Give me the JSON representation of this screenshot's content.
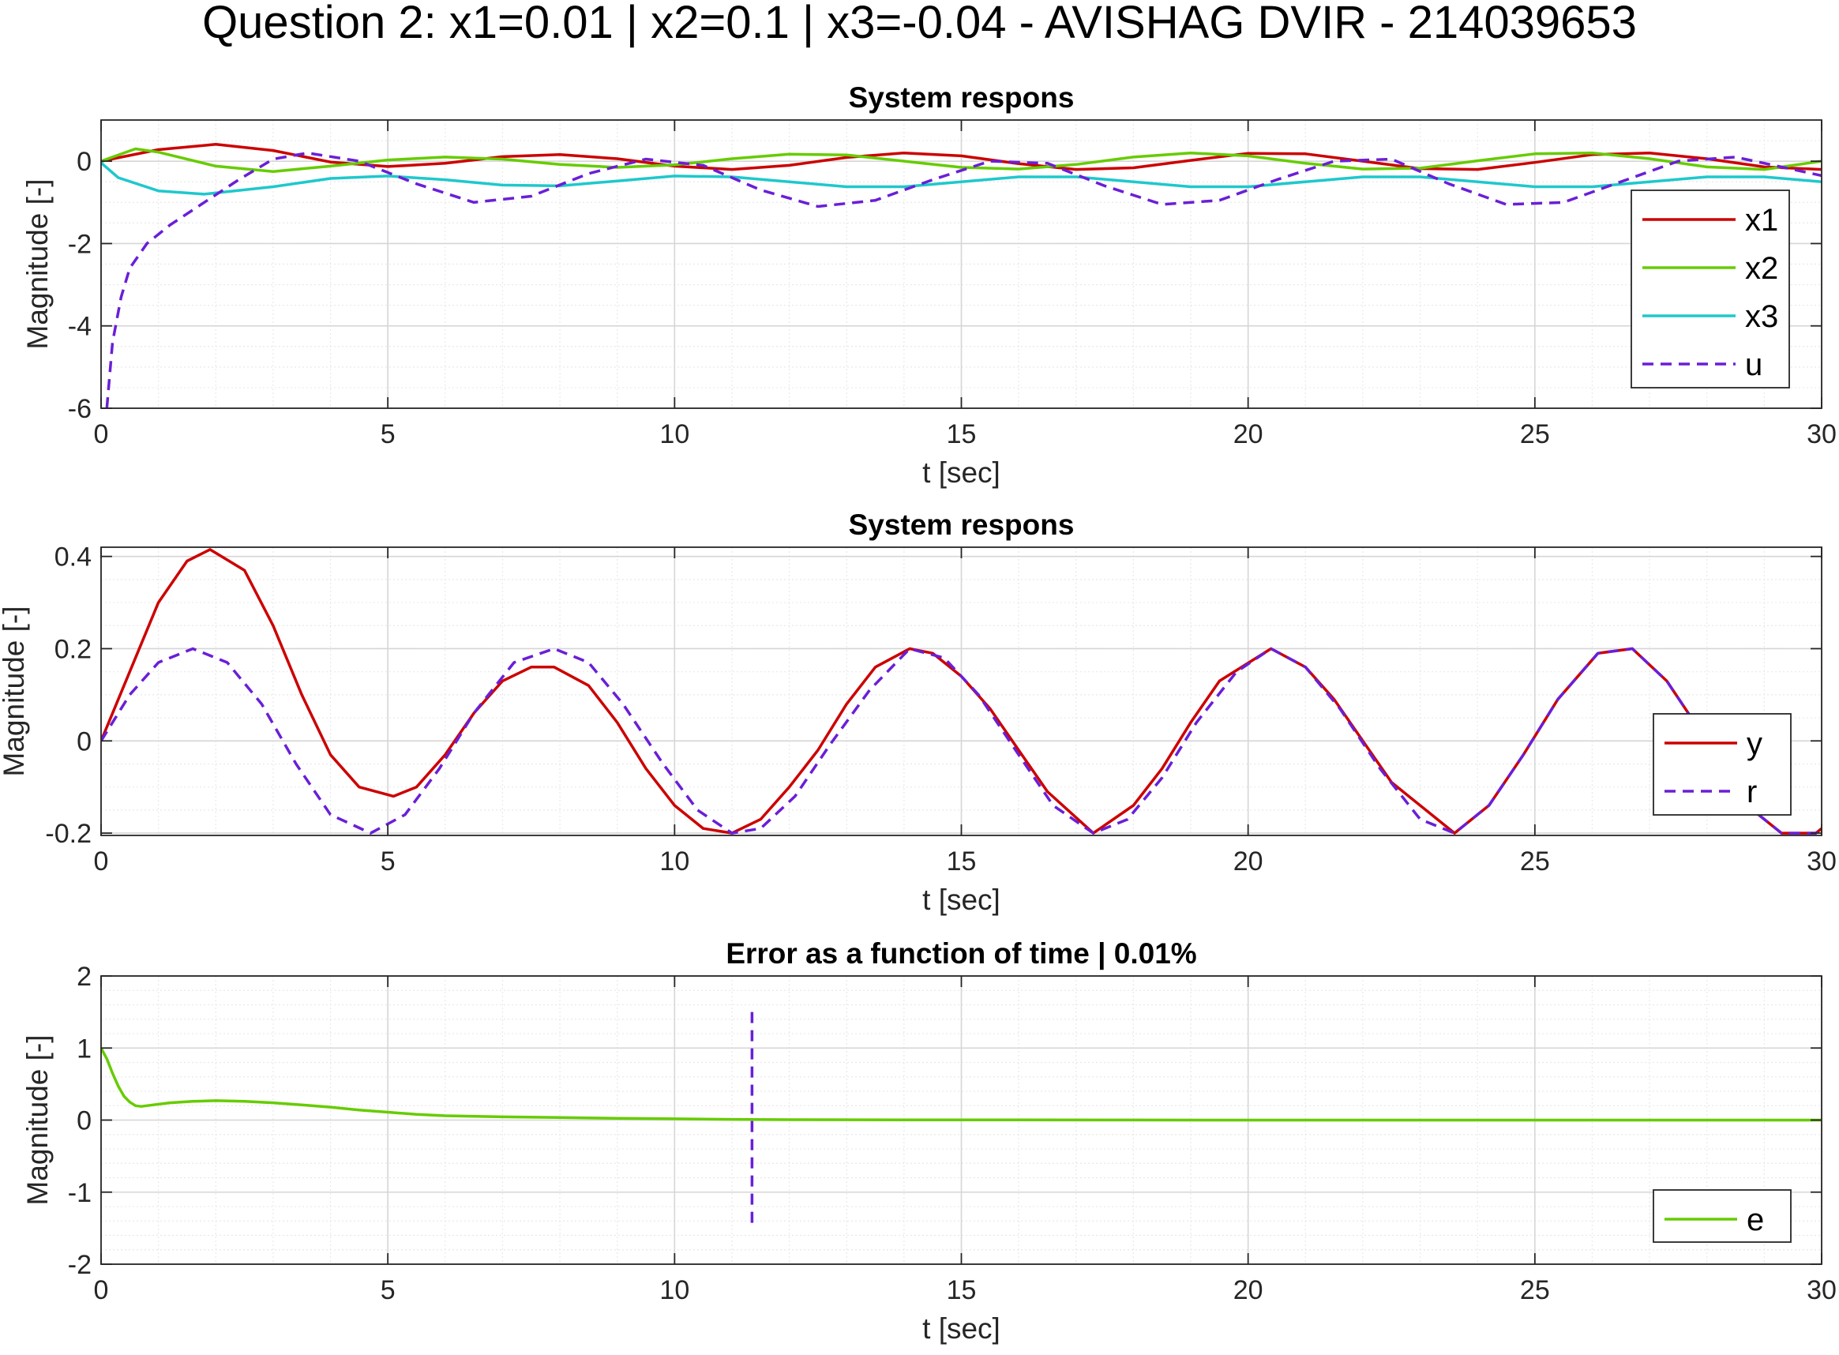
{
  "figure": {
    "title": "Question 2: x1=0.01 | x2=0.1 | x3=-0.04 - AVISHAG DVIR - 214039653"
  },
  "colors": {
    "x1": "#cc0000",
    "x2": "#66cc00",
    "x3": "#1ec8cc",
    "u": "#6a1fd6",
    "y": "#cc0000",
    "r": "#6a1fd6",
    "e": "#66cc00",
    "marker": "#6a1fd6",
    "grid": "#d6d6d6",
    "minor_grid": "#e9e9e9",
    "axis": "#262626"
  },
  "chart_data": [
    {
      "type": "line",
      "title": "System respons",
      "xlabel": "t [sec]",
      "ylabel": "Magnitude [-]",
      "xlim": [
        0,
        30
      ],
      "ylim": [
        -6,
        1
      ],
      "xticks": [
        "0",
        "5",
        "10",
        "15",
        "20",
        "25",
        "30"
      ],
      "yticks": [
        "-6",
        "-4",
        "-2",
        "0"
      ],
      "ytick_values": [
        -6,
        -4,
        -2,
        0
      ],
      "grid": true,
      "minor_grid": true,
      "legend_position": "right",
      "series": [
        {
          "name": "x1",
          "style": "solid",
          "x": [
            0,
            1,
            2,
            3,
            4,
            5,
            6,
            7,
            8,
            9,
            10,
            11,
            12,
            13,
            14,
            15,
            16,
            17,
            18,
            19,
            20,
            21,
            22,
            23,
            24,
            25,
            26,
            27,
            28,
            29,
            30
          ],
          "y": [
            0.0,
            0.28,
            0.41,
            0.26,
            -0.02,
            -0.13,
            -0.05,
            0.11,
            0.16,
            0.06,
            -0.12,
            -0.2,
            -0.1,
            0.09,
            0.2,
            0.13,
            -0.06,
            -0.2,
            -0.16,
            0.02,
            0.19,
            0.18,
            0.0,
            -0.18,
            -0.2,
            -0.03,
            0.16,
            0.2,
            0.06,
            -0.14,
            -0.2
          ]
        },
        {
          "name": "x2",
          "style": "solid",
          "x": [
            0,
            0.6,
            1,
            2,
            3,
            4,
            5,
            6,
            7,
            8,
            9,
            10,
            11,
            12,
            13,
            14,
            15,
            16,
            17,
            18,
            19,
            20,
            21,
            22,
            23,
            24,
            25,
            26,
            27,
            28,
            29,
            30
          ],
          "y": [
            0.0,
            0.3,
            0.22,
            -0.12,
            -0.25,
            -0.12,
            0.03,
            0.1,
            0.05,
            -0.08,
            -0.15,
            -0.09,
            0.06,
            0.17,
            0.15,
            0.0,
            -0.15,
            -0.19,
            -0.08,
            0.1,
            0.2,
            0.13,
            -0.05,
            -0.19,
            -0.17,
            0.01,
            0.18,
            0.2,
            0.06,
            -0.14,
            -0.2,
            0.0
          ]
        },
        {
          "name": "x3",
          "style": "solid",
          "x": [
            0,
            0.3,
            1,
            1.8,
            3,
            4,
            5,
            6,
            7,
            8,
            9,
            10,
            11,
            12,
            13,
            14,
            15,
            16,
            17,
            18,
            19,
            20,
            21,
            22,
            23,
            24,
            25,
            26,
            27,
            28,
            29,
            30
          ],
          "y": [
            -0.04,
            -0.4,
            -0.72,
            -0.8,
            -0.62,
            -0.42,
            -0.36,
            -0.45,
            -0.58,
            -0.6,
            -0.48,
            -0.36,
            -0.38,
            -0.5,
            -0.62,
            -0.62,
            -0.5,
            -0.38,
            -0.38,
            -0.5,
            -0.62,
            -0.62,
            -0.5,
            -0.38,
            -0.38,
            -0.5,
            -0.62,
            -0.62,
            -0.5,
            -0.38,
            -0.38,
            -0.5
          ]
        },
        {
          "name": "u",
          "style": "dashed",
          "x": [
            0.1,
            0.2,
            0.35,
            0.5,
            0.8,
            1.2,
            1.8,
            2.4,
            3,
            3.6,
            4.5,
            5.5,
            6.5,
            7.5,
            8.5,
            9.5,
            10.5,
            11.5,
            12.5,
            13.5,
            14.5,
            15.5,
            16.5,
            17.5,
            18.5,
            19.5,
            20.5,
            21.5,
            22.5,
            23.5,
            24.5,
            25.5,
            26.5,
            27.5,
            28.5,
            29.5,
            30
          ],
          "y": [
            -6.0,
            -4.4,
            -3.3,
            -2.6,
            -2.0,
            -1.55,
            -1.0,
            -0.45,
            0.05,
            0.2,
            0.0,
            -0.55,
            -1.0,
            -0.85,
            -0.3,
            0.05,
            -0.1,
            -0.7,
            -1.1,
            -0.95,
            -0.45,
            0.0,
            -0.05,
            -0.6,
            -1.05,
            -0.95,
            -0.45,
            0.0,
            0.05,
            -0.55,
            -1.05,
            -1.0,
            -0.5,
            0.0,
            0.1,
            -0.2,
            -0.35
          ]
        }
      ]
    },
    {
      "type": "line",
      "title": "System respons",
      "xlabel": "t [sec]",
      "ylabel": "Magnitude [-]",
      "xlim": [
        0,
        30
      ],
      "ylim": [
        -0.205,
        0.42
      ],
      "xticks": [
        "0",
        "5",
        "10",
        "15",
        "20",
        "25",
        "30"
      ],
      "yticks": [
        "-0.2",
        "0",
        "0.2",
        "0.4"
      ],
      "ytick_values": [
        -0.2,
        0,
        0.2,
        0.4
      ],
      "grid": true,
      "minor_grid": true,
      "legend_position": "bottom-right",
      "series": [
        {
          "name": "y",
          "style": "solid",
          "x": [
            0,
            0.5,
            1,
            1.5,
            1.9,
            2.5,
            3,
            3.5,
            4,
            4.5,
            5.1,
            5.5,
            6,
            6.5,
            7,
            7.5,
            7.9,
            8.5,
            9,
            9.5,
            10,
            10.5,
            11,
            11.5,
            12,
            12.5,
            13,
            13.5,
            14.1,
            14.5,
            15,
            15.5,
            16,
            16.5,
            17.3,
            18,
            18.5,
            19,
            19.5,
            20.4,
            21,
            21.5,
            22,
            22.5,
            23.6,
            24.2,
            24.8,
            25.4,
            26.1,
            26.7,
            27.3,
            28,
            28.6,
            29.3,
            29.9,
            30
          ],
          "y": [
            0.0,
            0.15,
            0.3,
            0.39,
            0.415,
            0.37,
            0.25,
            0.1,
            -0.03,
            -0.1,
            -0.12,
            -0.1,
            -0.03,
            0.06,
            0.13,
            0.16,
            0.16,
            0.12,
            0.04,
            -0.06,
            -0.14,
            -0.19,
            -0.2,
            -0.17,
            -0.1,
            -0.02,
            0.08,
            0.16,
            0.2,
            0.19,
            0.14,
            0.07,
            -0.02,
            -0.11,
            -0.2,
            -0.14,
            -0.06,
            0.04,
            0.13,
            0.2,
            0.16,
            0.09,
            0.0,
            -0.09,
            -0.2,
            -0.14,
            -0.03,
            0.09,
            0.19,
            0.2,
            0.13,
            0.0,
            -0.13,
            -0.2,
            -0.2,
            -0.19
          ]
        },
        {
          "name": "r",
          "style": "dashed",
          "x": [
            0,
            0.5,
            1,
            1.6,
            2.2,
            2.8,
            3.4,
            4,
            4.7,
            5.3,
            5.9,
            6.5,
            7.2,
            7.9,
            8.5,
            9.1,
            9.8,
            10.4,
            11,
            11.5,
            12.1,
            12.7,
            13.4,
            14.1,
            14.7,
            15.3,
            16,
            16.6,
            17.3,
            17.9,
            18.5,
            19.1,
            19.8,
            20.4,
            21,
            21.6,
            22.3,
            23,
            23.6,
            24.2,
            24.8,
            25.4,
            26.1,
            26.7,
            27.3,
            28,
            28.6,
            29.3,
            29.9,
            30
          ],
          "y": [
            0.0,
            0.1,
            0.17,
            0.2,
            0.17,
            0.08,
            -0.05,
            -0.16,
            -0.2,
            -0.16,
            -0.06,
            0.06,
            0.17,
            0.2,
            0.17,
            0.08,
            -0.05,
            -0.15,
            -0.2,
            -0.19,
            -0.12,
            -0.01,
            0.11,
            0.2,
            0.18,
            0.1,
            -0.03,
            -0.14,
            -0.2,
            -0.17,
            -0.08,
            0.04,
            0.15,
            0.2,
            0.16,
            0.07,
            -0.06,
            -0.17,
            -0.2,
            -0.14,
            -0.03,
            0.09,
            0.19,
            0.2,
            0.13,
            0.0,
            -0.13,
            -0.2,
            -0.2,
            -0.19
          ]
        }
      ]
    },
    {
      "type": "line",
      "title": "Error as a function of time | 0.01%",
      "xlabel": "t [sec]",
      "ylabel": "Magnitude [-]",
      "xlim": [
        0,
        30
      ],
      "ylim": [
        -2,
        2
      ],
      "xticks": [
        "0",
        "5",
        "10",
        "15",
        "20",
        "25",
        "30"
      ],
      "yticks": [
        "-2",
        "-1",
        "0",
        "1",
        "2"
      ],
      "ytick_values": [
        -2,
        -1,
        0,
        1,
        2
      ],
      "grid": true,
      "minor_grid": true,
      "legend_position": "bottom-right",
      "series": [
        {
          "name": "e",
          "style": "solid",
          "x": [
            0,
            0.1,
            0.2,
            0.3,
            0.4,
            0.5,
            0.6,
            0.7,
            0.9,
            1.2,
            1.6,
            2,
            2.5,
            3,
            3.5,
            4,
            4.5,
            5,
            5.5,
            6,
            7,
            8,
            9,
            10,
            11,
            12,
            14,
            16,
            18,
            20,
            25,
            30
          ],
          "y": [
            1.0,
            0.85,
            0.65,
            0.47,
            0.33,
            0.25,
            0.2,
            0.19,
            0.21,
            0.24,
            0.26,
            0.27,
            0.26,
            0.24,
            0.21,
            0.18,
            0.14,
            0.11,
            0.08,
            0.06,
            0.045,
            0.035,
            0.025,
            0.017,
            0.01,
            0.006,
            0.003,
            0.002,
            0.001,
            0.0,
            0.0,
            0.0
          ]
        }
      ],
      "marker": {
        "x": 11.35,
        "y_range": [
          -1.5,
          1.5
        ],
        "style": "dashed"
      }
    }
  ]
}
